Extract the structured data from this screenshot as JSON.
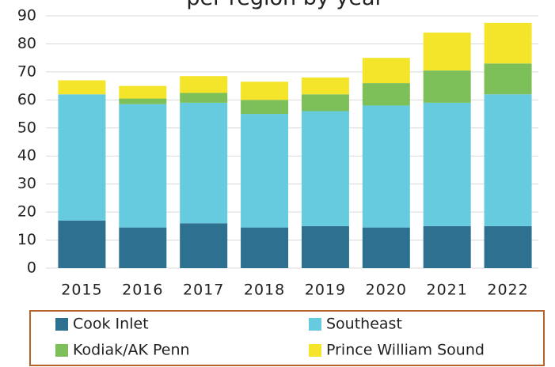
{
  "chart_data": {
    "type": "stacked_bar",
    "title": "per region by year",
    "categories": [
      "2015",
      "2016",
      "2017",
      "2018",
      "2019",
      "2020",
      "2021",
      "2022"
    ],
    "series": [
      {
        "name": "Cook Inlet",
        "color": "#2e7090",
        "values": [
          17,
          14.5,
          16,
          14.5,
          15,
          14.5,
          15,
          15
        ]
      },
      {
        "name": "Southeast",
        "color": "#67cbe0",
        "values": [
          45,
          44,
          43,
          40.5,
          41,
          43.5,
          44,
          47
        ]
      },
      {
        "name": "Kodiak/AK Penn",
        "color": "#7dc05a",
        "values": [
          0,
          2,
          3.5,
          5,
          6,
          8,
          11.5,
          11
        ]
      },
      {
        "name": "Prince William Sound",
        "color": "#f5e52a",
        "values": [
          5,
          4.5,
          6,
          6.5,
          6,
          9,
          13.5,
          14.5
        ]
      }
    ],
    "ylim": [
      0,
      90
    ],
    "yticks": [
      0,
      10,
      20,
      30,
      40,
      50,
      60,
      70,
      80,
      90
    ],
    "grid": true
  }
}
